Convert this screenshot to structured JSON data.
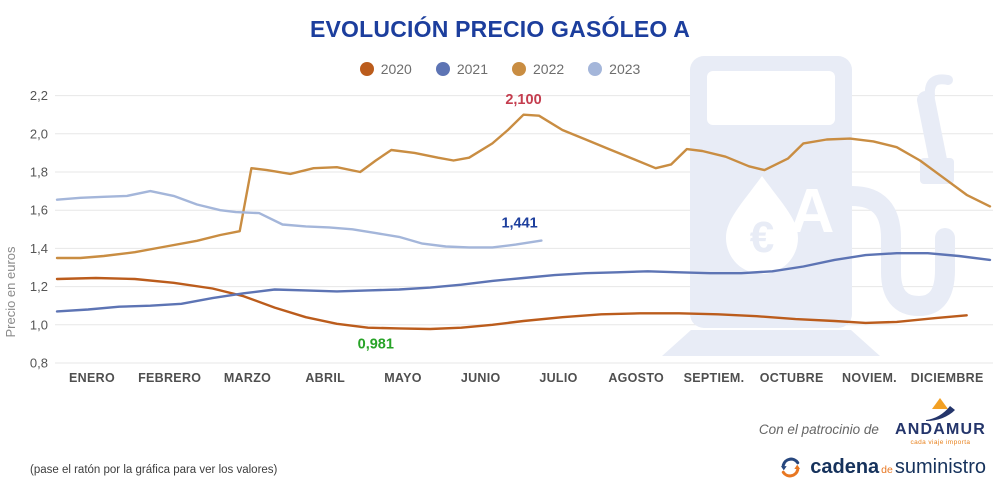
{
  "title": "EVOLUCIÓN PRECIO GASÓLEO A",
  "legend": [
    {
      "label": "2020",
      "color": "#bb5c1c"
    },
    {
      "label": "2021",
      "color": "#5d74b4"
    },
    {
      "label": "2022",
      "color": "#c98d42"
    },
    {
      "label": "2023",
      "color": "#a4b6da"
    }
  ],
  "chart_data": {
    "type": "line",
    "title": "EVOLUCIÓN PRECIO GASÓLEO A",
    "xlabel": "",
    "ylabel": "Precio en euros",
    "ylim": [
      0.8,
      2.2
    ],
    "ytick_step": 0.2,
    "ytick_format": "comma-decimal",
    "grid": true,
    "legend_position": "top",
    "x_categories": [
      "ENERO",
      "FEBRERO",
      "MARZO",
      "ABRIL",
      "MAYO",
      "JUNIO",
      "JULIO",
      "AGOSTO",
      "SEPTIEM.",
      "OCTUBRE",
      "NOVIEM.",
      "DICIEMBRE"
    ],
    "x_unit": "month (0 = 1 Jan, 12 = 31 Dec)",
    "y_unit": "euros/litre",
    "series": [
      {
        "name": "2020",
        "color": "#bb5c1c",
        "points": [
          [
            0,
            1.24
          ],
          [
            0.5,
            1.245
          ],
          [
            1,
            1.24
          ],
          [
            1.5,
            1.22
          ],
          [
            2,
            1.19
          ],
          [
            2.4,
            1.15
          ],
          [
            2.8,
            1.09
          ],
          [
            3.2,
            1.04
          ],
          [
            3.6,
            1.005
          ],
          [
            4,
            0.985
          ],
          [
            4.4,
            0.981
          ],
          [
            4.8,
            0.978
          ],
          [
            5.2,
            0.985
          ],
          [
            5.6,
            1.0
          ],
          [
            6,
            1.02
          ],
          [
            6.5,
            1.04
          ],
          [
            7,
            1.055
          ],
          [
            7.5,
            1.06
          ],
          [
            8,
            1.06
          ],
          [
            8.5,
            1.055
          ],
          [
            9,
            1.045
          ],
          [
            9.5,
            1.03
          ],
          [
            10,
            1.02
          ],
          [
            10.4,
            1.01
          ],
          [
            10.8,
            1.015
          ],
          [
            11.3,
            1.035
          ],
          [
            11.7,
            1.05
          ]
        ]
      },
      {
        "name": "2021",
        "color": "#5d74b4",
        "points": [
          [
            0,
            1.07
          ],
          [
            0.4,
            1.08
          ],
          [
            0.8,
            1.095
          ],
          [
            1.2,
            1.1
          ],
          [
            1.6,
            1.11
          ],
          [
            2,
            1.14
          ],
          [
            2.4,
            1.165
          ],
          [
            2.8,
            1.185
          ],
          [
            3.2,
            1.18
          ],
          [
            3.6,
            1.175
          ],
          [
            4,
            1.18
          ],
          [
            4.4,
            1.185
          ],
          [
            4.8,
            1.195
          ],
          [
            5.2,
            1.21
          ],
          [
            5.6,
            1.23
          ],
          [
            6,
            1.245
          ],
          [
            6.4,
            1.26
          ],
          [
            6.8,
            1.27
          ],
          [
            7.2,
            1.275
          ],
          [
            7.6,
            1.28
          ],
          [
            8,
            1.275
          ],
          [
            8.4,
            1.27
          ],
          [
            8.8,
            1.27
          ],
          [
            9.2,
            1.28
          ],
          [
            9.6,
            1.305
          ],
          [
            10,
            1.34
          ],
          [
            10.4,
            1.365
          ],
          [
            10.8,
            1.375
          ],
          [
            11.2,
            1.375
          ],
          [
            11.6,
            1.36
          ],
          [
            12,
            1.34
          ]
        ]
      },
      {
        "name": "2022",
        "color": "#c98d42",
        "points": [
          [
            0,
            1.35
          ],
          [
            0.3,
            1.35
          ],
          [
            0.6,
            1.36
          ],
          [
            1,
            1.38
          ],
          [
            1.4,
            1.41
          ],
          [
            1.8,
            1.44
          ],
          [
            2.1,
            1.47
          ],
          [
            2.35,
            1.49
          ],
          [
            2.5,
            1.82
          ],
          [
            2.7,
            1.81
          ],
          [
            3,
            1.79
          ],
          [
            3.3,
            1.82
          ],
          [
            3.6,
            1.825
          ],
          [
            3.9,
            1.8
          ],
          [
            4.1,
            1.86
          ],
          [
            4.3,
            1.915
          ],
          [
            4.6,
            1.9
          ],
          [
            4.9,
            1.875
          ],
          [
            5.1,
            1.86
          ],
          [
            5.3,
            1.875
          ],
          [
            5.6,
            1.95
          ],
          [
            5.8,
            2.02
          ],
          [
            6,
            2.1
          ],
          [
            6.2,
            2.095
          ],
          [
            6.5,
            2.02
          ],
          [
            6.8,
            1.97
          ],
          [
            7.1,
            1.92
          ],
          [
            7.4,
            1.87
          ],
          [
            7.7,
            1.82
          ],
          [
            7.9,
            1.84
          ],
          [
            8.1,
            1.92
          ],
          [
            8.3,
            1.91
          ],
          [
            8.6,
            1.88
          ],
          [
            8.9,
            1.83
          ],
          [
            9.1,
            1.81
          ],
          [
            9.4,
            1.87
          ],
          [
            9.6,
            1.95
          ],
          [
            9.9,
            1.97
          ],
          [
            10.2,
            1.975
          ],
          [
            10.5,
            1.96
          ],
          [
            10.8,
            1.93
          ],
          [
            11.1,
            1.86
          ],
          [
            11.4,
            1.77
          ],
          [
            11.7,
            1.68
          ],
          [
            12,
            1.62
          ]
        ]
      },
      {
        "name": "2023",
        "color": "#a4b6da",
        "points": [
          [
            0,
            1.655
          ],
          [
            0.3,
            1.665
          ],
          [
            0.6,
            1.67
          ],
          [
            0.9,
            1.675
          ],
          [
            1.2,
            1.7
          ],
          [
            1.5,
            1.675
          ],
          [
            1.8,
            1.63
          ],
          [
            2.1,
            1.6
          ],
          [
            2.3,
            1.59
          ],
          [
            2.6,
            1.585
          ],
          [
            2.9,
            1.525
          ],
          [
            3.2,
            1.515
          ],
          [
            3.5,
            1.51
          ],
          [
            3.8,
            1.5
          ],
          [
            4.1,
            1.48
          ],
          [
            4.4,
            1.46
          ],
          [
            4.7,
            1.425
          ],
          [
            5,
            1.41
          ],
          [
            5.3,
            1.405
          ],
          [
            5.6,
            1.405
          ],
          [
            5.9,
            1.42
          ],
          [
            6.23,
            1.441
          ]
        ]
      }
    ],
    "annotations": [
      {
        "name": "max-2022",
        "text": "2,100",
        "color": "#c43d4e",
        "x": 6.0,
        "value": 2.155
      },
      {
        "name": "last-2023",
        "text": "1,441",
        "color": "#1c3e9d",
        "x": 5.95,
        "value": 1.51
      },
      {
        "name": "min-2020",
        "text": "0,981",
        "color": "#27a327",
        "x": 4.1,
        "value": 0.875
      }
    ]
  },
  "footer": {
    "sponsor": {
      "lead_in": "Con el patrocinio de",
      "name": "ANDAMUR",
      "tagline": "cada viaje importa"
    },
    "publisher": {
      "p1": "cadena",
      "p2": "de",
      "p3": "suministro"
    },
    "note": "(pase el ratón por la gráfica para ver los valores)"
  }
}
